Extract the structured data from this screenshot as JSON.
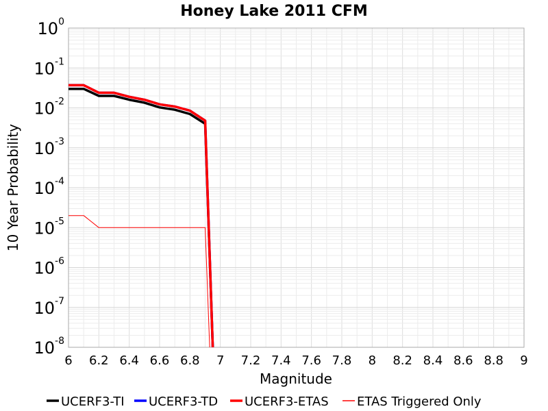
{
  "chart_data": {
    "type": "line",
    "title": "Honey Lake 2011 CFM",
    "xlabel": "Magnitude",
    "ylabel": "10 Year Probability",
    "xlim": [
      6,
      9
    ],
    "ylim": [
      1e-08,
      1
    ],
    "yscale": "log",
    "grid": true,
    "legend_position": "bottom",
    "xticks": [
      "6",
      "6.2",
      "6.4",
      "6.6",
      "6.8",
      "7",
      "7.2",
      "7.4",
      "7.6",
      "7.8",
      "8",
      "8.2",
      "8.4",
      "8.6",
      "8.8",
      "9"
    ],
    "yticks": [
      {
        "base": "10",
        "exp": "0",
        "value": 1
      },
      {
        "base": "10",
        "exp": "-1",
        "value": 0.1
      },
      {
        "base": "10",
        "exp": "-2",
        "value": 0.01
      },
      {
        "base": "10",
        "exp": "-3",
        "value": 0.001
      },
      {
        "base": "10",
        "exp": "-4",
        "value": 0.0001
      },
      {
        "base": "10",
        "exp": "-5",
        "value": 1e-05
      },
      {
        "base": "10",
        "exp": "-6",
        "value": 1e-06
      },
      {
        "base": "10",
        "exp": "-7",
        "value": 1e-07
      },
      {
        "base": "10",
        "exp": "-8",
        "value": 1e-08
      }
    ],
    "series": [
      {
        "name": "UCERF3-TI",
        "color": "#000000",
        "style": "thick",
        "x": [
          6.0,
          6.1,
          6.2,
          6.3,
          6.4,
          6.5,
          6.6,
          6.7,
          6.8,
          6.9,
          6.95
        ],
        "y": [
          0.03,
          0.03,
          0.02,
          0.02,
          0.016,
          0.0135,
          0.0103,
          0.009,
          0.007,
          0.004,
          1e-08
        ]
      },
      {
        "name": "UCERF3-TD",
        "color": "#0000ff",
        "style": "thick",
        "x": [
          6.0,
          6.1,
          6.2,
          6.3,
          6.4,
          6.5,
          6.6,
          6.7,
          6.8,
          6.9,
          6.95
        ],
        "y": [
          0.037,
          0.037,
          0.024,
          0.024,
          0.019,
          0.016,
          0.0123,
          0.0108,
          0.0085,
          0.0048,
          1e-08
        ]
      },
      {
        "name": "UCERF3-ETAS",
        "color": "#ff0000",
        "style": "thick",
        "x": [
          6.0,
          6.1,
          6.2,
          6.3,
          6.4,
          6.5,
          6.6,
          6.7,
          6.8,
          6.9,
          6.95
        ],
        "y": [
          0.037,
          0.037,
          0.024,
          0.024,
          0.019,
          0.016,
          0.0123,
          0.0108,
          0.0085,
          0.0048,
          1e-08
        ]
      },
      {
        "name": "ETAS Triggered Only",
        "color": "#ff0000",
        "style": "thin",
        "x": [
          6.0,
          6.1,
          6.2,
          6.3,
          6.4,
          6.5,
          6.6,
          6.7,
          6.8,
          6.9,
          6.93
        ],
        "y": [
          2e-05,
          2e-05,
          1e-05,
          1e-05,
          1e-05,
          1e-05,
          1e-05,
          1e-05,
          1e-05,
          1e-05,
          1e-08
        ]
      }
    ]
  }
}
